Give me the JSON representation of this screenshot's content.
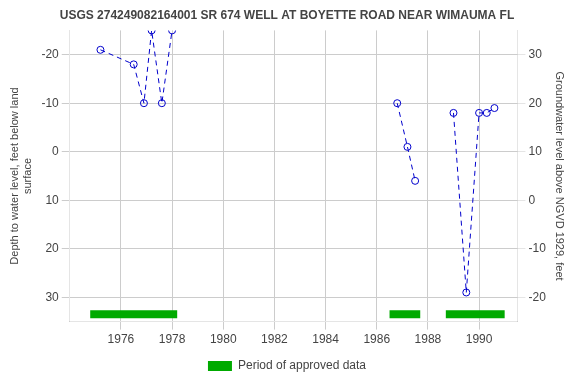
{
  "chart_data": {
    "type": "line",
    "title": "USGS 274249082164001 SR 674 WELL AT BOYETTE ROAD NEAR WIMAUMA FL",
    "ylabel": "Depth to water level, feet below land\nsurface",
    "y2label": "Groundwater level above NGVD 1929, feet",
    "series": [
      {
        "x": [
          1975.2,
          1976.5,
          1976.9,
          1977.2,
          1977.6,
          1978.0
        ],
        "values": [
          -21,
          -18,
          -10,
          -25,
          -10,
          -25
        ],
        "color": "#0000CC",
        "marker": "circle",
        "line_style": "dashed"
      },
      {
        "x": [
          1986.8,
          1987.2,
          1987.5
        ],
        "values": [
          -10,
          -1,
          6
        ],
        "color": "#0000CC",
        "marker": "circle",
        "line_style": "dashed"
      },
      {
        "x": [
          1989.0,
          1989.5,
          1990.0,
          1990.3,
          1990.6
        ],
        "values": [
          -8,
          29,
          -8,
          -8,
          -9
        ],
        "color": "#0000CC",
        "marker": "circle",
        "line_style": "dashed"
      },
      {
        "name": "Period of approved data",
        "type": "bar",
        "orientation": "horizontal",
        "color": "#00AA00",
        "y": 33.5,
        "ranges": [
          [
            1974.8,
            1978.2
          ],
          [
            1986.5,
            1987.7
          ],
          [
            1988.7,
            1991.0
          ]
        ]
      }
    ],
    "xlim": [
      1974.0,
      1991.5
    ],
    "xticks": [
      1976,
      1978,
      1980,
      1982,
      1984,
      1986,
      1988,
      1990
    ],
    "ylim": [
      35,
      -25
    ],
    "yticks": [
      -20,
      -10,
      0,
      10,
      20,
      30
    ],
    "y2lim": [
      -25,
      35
    ],
    "y2ticks": [
      30,
      20,
      10,
      0,
      -10,
      -20
    ],
    "grid": true,
    "legend": "bottom"
  }
}
